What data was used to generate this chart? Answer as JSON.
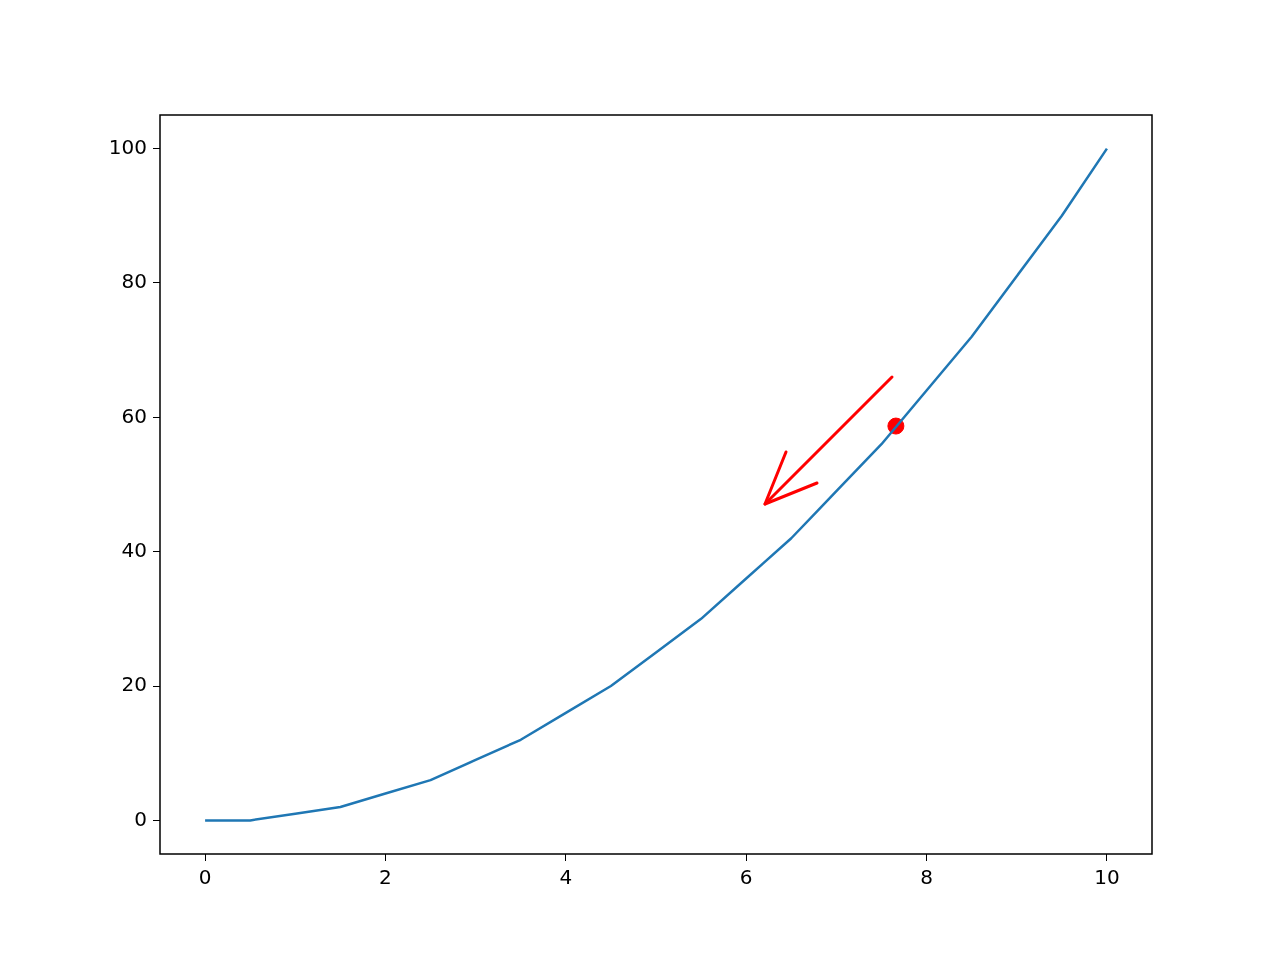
{
  "chart_data": {
    "type": "line",
    "xlim": [
      -0.5,
      10.5
    ],
    "ylim": [
      -5,
      105
    ],
    "xticks": [
      0,
      2,
      4,
      6,
      8,
      10
    ],
    "yticks": [
      0,
      20,
      40,
      60,
      80,
      100
    ],
    "grid": false,
    "legend": false,
    "series": [
      {
        "color": "#1f77b4",
        "marker": "none",
        "line_style": "solid",
        "x": [
          0,
          0.5,
          1,
          1.5,
          2,
          2.5,
          3,
          3.5,
          4,
          4.5,
          5,
          5.5,
          6,
          6.5,
          7,
          7.5,
          8,
          8.5,
          9,
          9.5,
          10
        ],
        "values": [
          0,
          0,
          1,
          2,
          4,
          6,
          9,
          12,
          16,
          20,
          25,
          30,
          36,
          42,
          49,
          56,
          64,
          72,
          81,
          90,
          100
        ]
      },
      {
        "type": "scatter",
        "color": "#ff0000",
        "marker": "circle",
        "x": [
          7.66
        ],
        "values": [
          58.7
        ]
      }
    ]
  }
}
